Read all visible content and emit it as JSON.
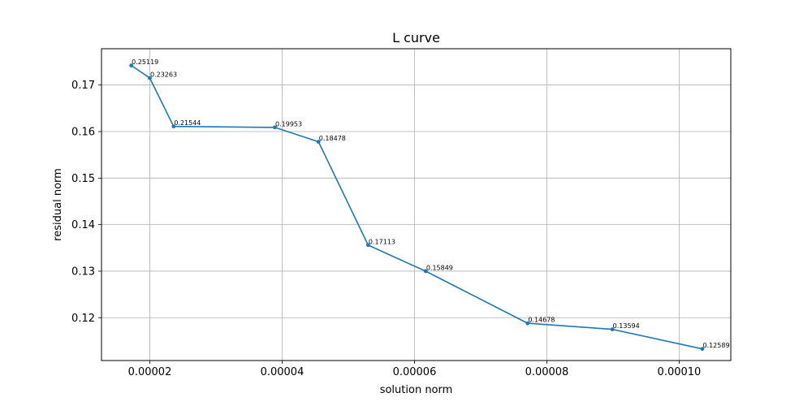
{
  "chart_data": {
    "type": "line",
    "title": "L curve",
    "xlabel": "solution norm",
    "ylabel": "residual norm",
    "xlim": [
      1.27e-05,
      0.0001078
    ],
    "ylim": [
      0.1108,
      0.1778
    ],
    "x_ticks": [
      2e-05,
      4e-05,
      6e-05,
      8e-05,
      0.0001
    ],
    "x_tick_labels": [
      "0.00002",
      "0.00004",
      "0.00006",
      "0.00008",
      "0.00010"
    ],
    "y_ticks": [
      0.12,
      0.13,
      0.14,
      0.15,
      0.16,
      0.17
    ],
    "y_tick_labels": [
      "0.12",
      "0.13",
      "0.14",
      "0.15",
      "0.16",
      "0.17"
    ],
    "grid": true,
    "series": [
      {
        "color": "#1f77b4",
        "points": [
          {
            "x": 1.72e-05,
            "y": 0.1742,
            "label": "0.25119"
          },
          {
            "x": 2e-05,
            "y": 0.1715,
            "label": "0.23263"
          },
          {
            "x": 2.36e-05,
            "y": 0.1611,
            "label": "0.21544"
          },
          {
            "x": 3.89e-05,
            "y": 0.1609,
            "label": "0.19953"
          },
          {
            "x": 4.55e-05,
            "y": 0.1578,
            "label": "0.18478"
          },
          {
            "x": 5.3e-05,
            "y": 0.1356,
            "label": "0.17113"
          },
          {
            "x": 6.17e-05,
            "y": 0.13,
            "label": "0.15849"
          },
          {
            "x": 7.71e-05,
            "y": 0.1188,
            "label": "0.14678"
          },
          {
            "x": 8.99e-05,
            "y": 0.1175,
            "label": "0.13594"
          },
          {
            "x": 0.0001035,
            "y": 0.1133,
            "label": "0.12589"
          }
        ]
      }
    ]
  }
}
